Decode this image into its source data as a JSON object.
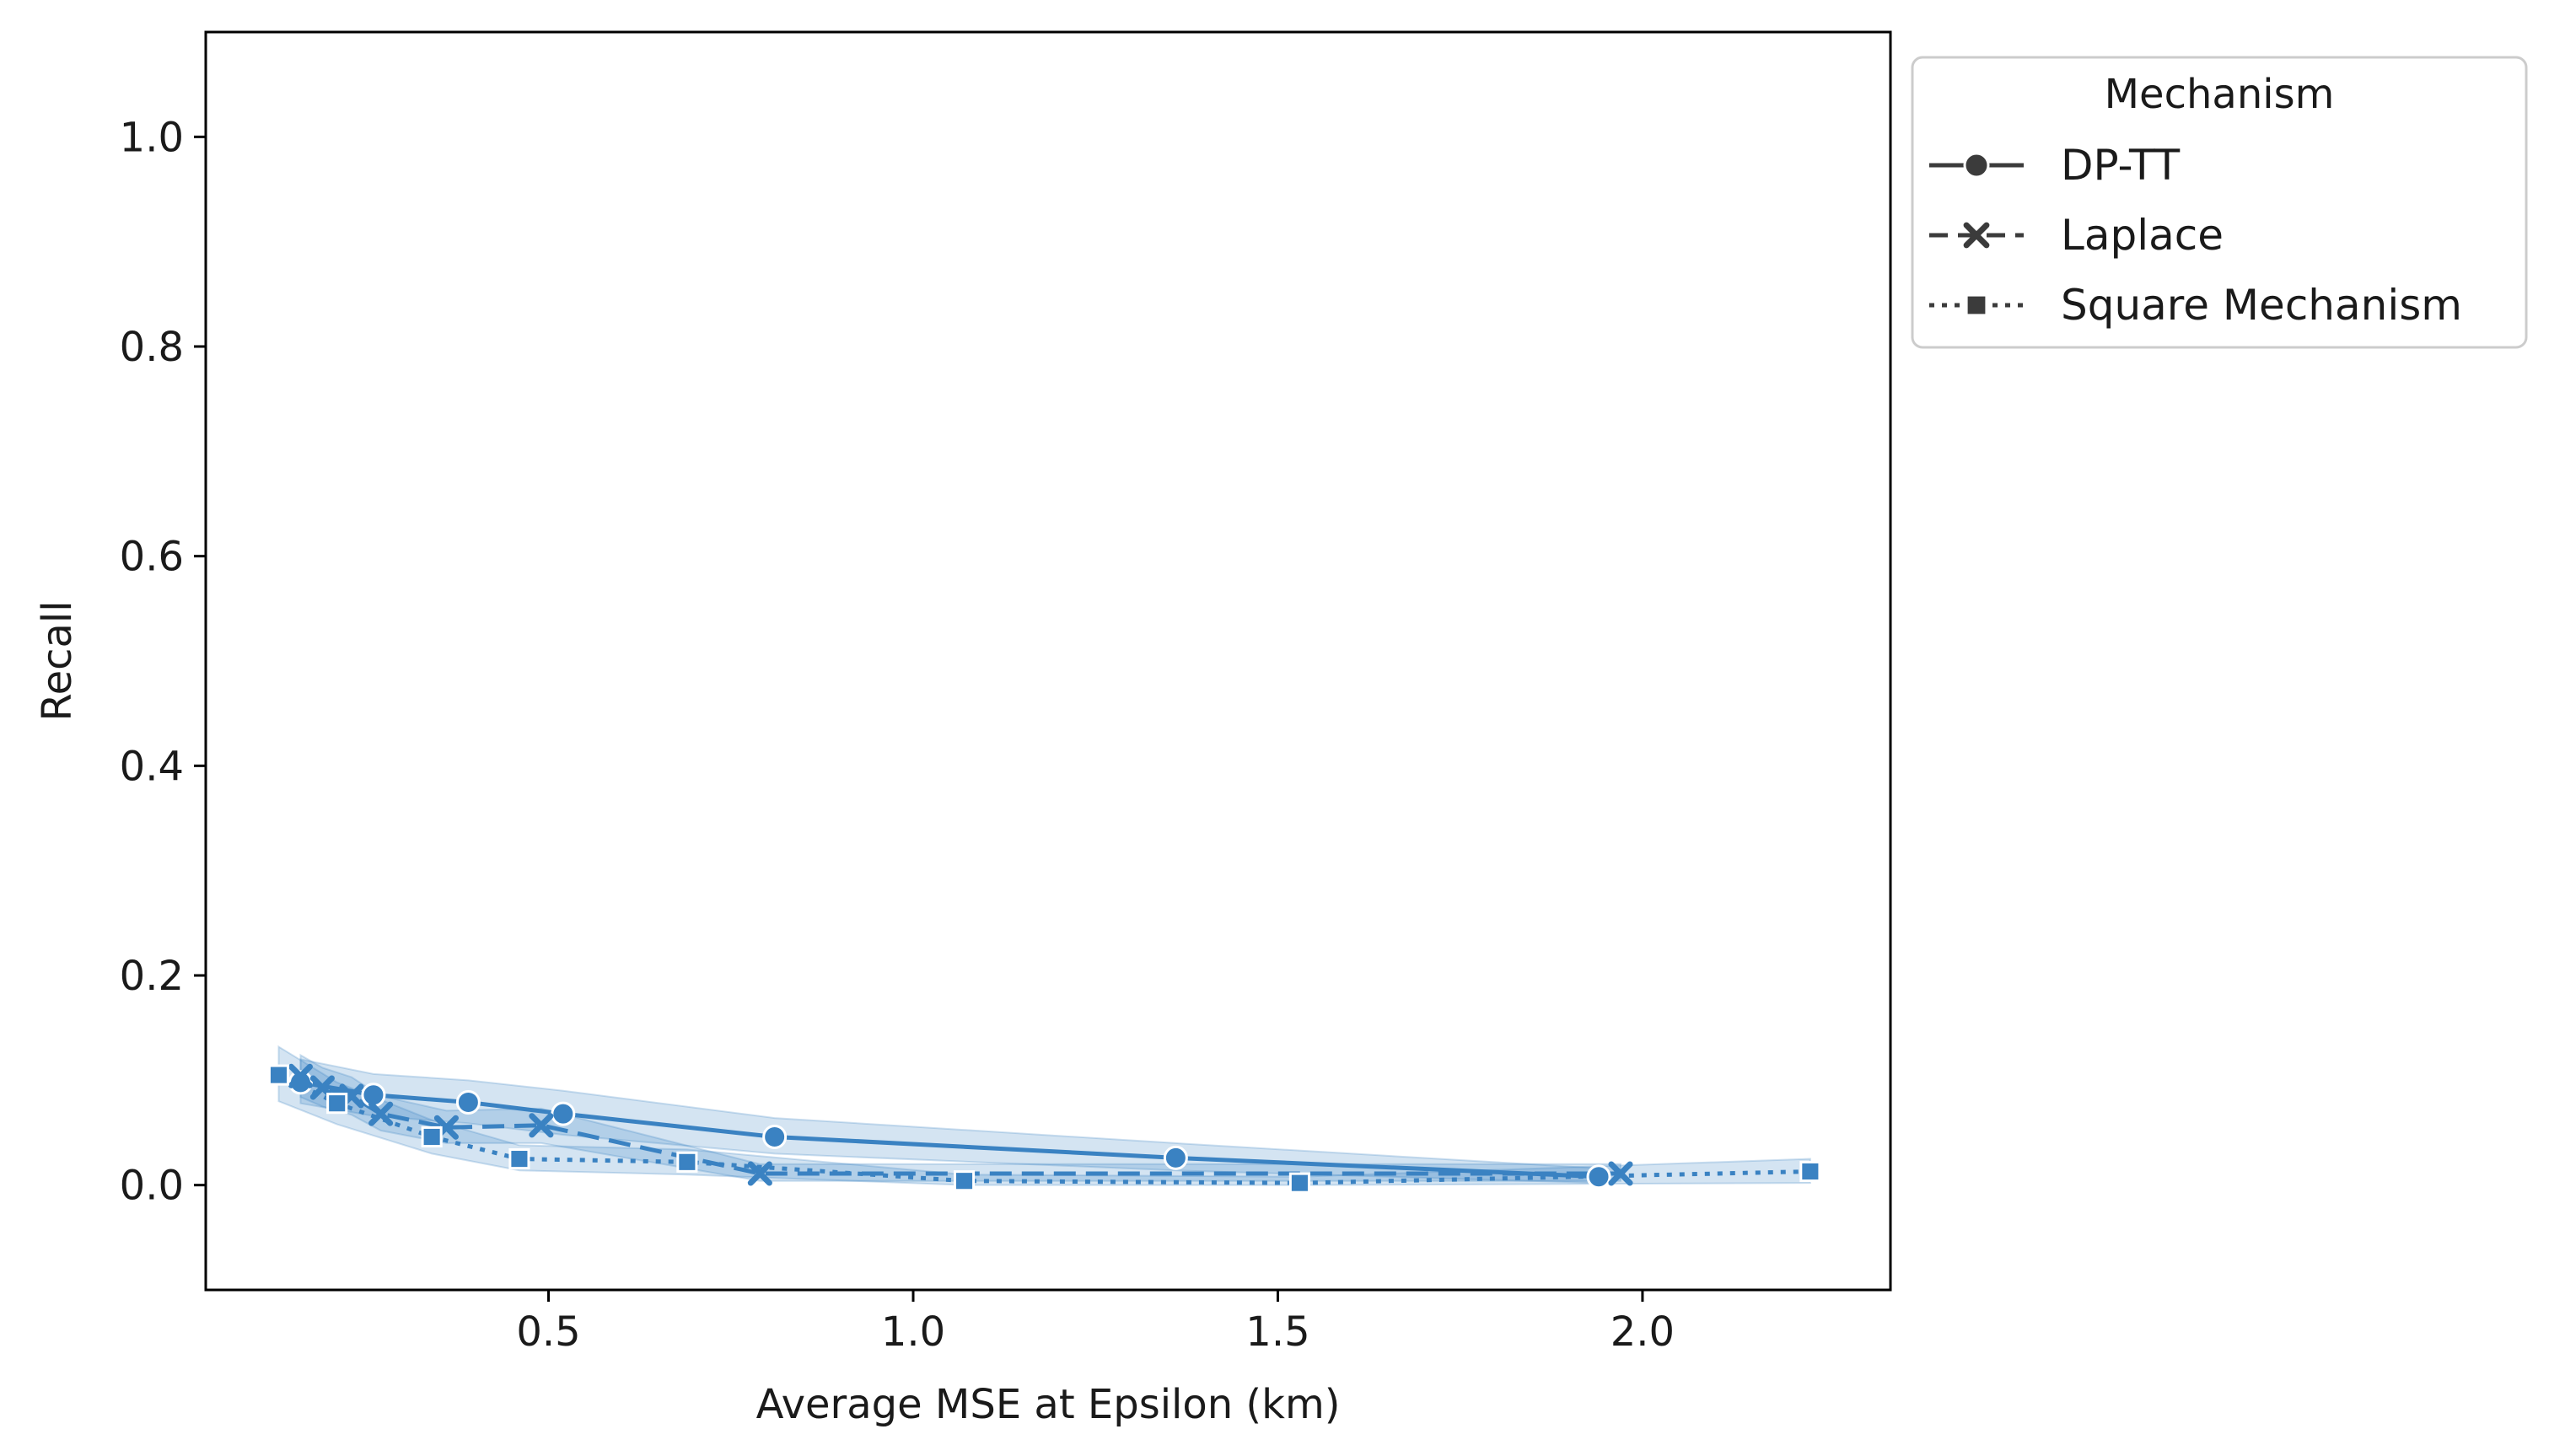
{
  "chart_data": {
    "type": "line",
    "title": "",
    "xlabel": "Average MSE at Epsilon (km)",
    "ylabel": "Recall",
    "xlim": [
      0.03,
      2.34
    ],
    "ylim": [
      -0.1,
      1.1
    ],
    "xticks": [
      0.5,
      1.0,
      1.5,
      2.0
    ],
    "xtick_labels": [
      "0.5",
      "1.0",
      "1.5",
      "2.0"
    ],
    "yticks": [
      0.0,
      0.2,
      0.4,
      0.6,
      0.8,
      1.0
    ],
    "ytick_labels": [
      "0.0",
      "0.2",
      "0.4",
      "0.6",
      "0.8",
      "1.0"
    ],
    "grid": false,
    "legend": {
      "title": "Mechanism",
      "placement": "outside-upper-right",
      "entries": [
        "DP-TT",
        "Laplace",
        "Square Mechanism"
      ]
    },
    "series": [
      {
        "name": "DP-TT",
        "line_style": "solid",
        "marker": "circle",
        "color": "#3a82c2",
        "x": [
          0.16,
          0.26,
          0.39,
          0.52,
          0.81,
          1.36,
          1.94
        ],
        "y": [
          0.098,
          0.086,
          0.079,
          0.068,
          0.046,
          0.026,
          0.008
        ],
        "ci_low": [
          0.078,
          0.066,
          0.059,
          0.048,
          0.03,
          0.014,
          0.002
        ],
        "ci_high": [
          0.12,
          0.106,
          0.1,
          0.09,
          0.064,
          0.04,
          0.016
        ]
      },
      {
        "name": "Laplace",
        "line_style": "dashed",
        "marker": "x",
        "color": "#3a82c2",
        "x": [
          0.16,
          0.19,
          0.23,
          0.27,
          0.36,
          0.49,
          0.79,
          1.97
        ],
        "y": [
          0.104,
          0.093,
          0.085,
          0.068,
          0.055,
          0.057,
          0.011,
          0.011
        ],
        "ci_low": [
          0.084,
          0.075,
          0.067,
          0.052,
          0.04,
          0.04,
          0.004,
          0.004
        ],
        "ci_high": [
          0.124,
          0.112,
          0.103,
          0.085,
          0.071,
          0.073,
          0.02,
          0.02
        ]
      },
      {
        "name": "Square Mechanism",
        "line_style": "dotted",
        "marker": "square",
        "color": "#3a82c2",
        "x": [
          0.13,
          0.21,
          0.34,
          0.46,
          0.69,
          1.07,
          1.53,
          2.23
        ],
        "y": [
          0.105,
          0.078,
          0.046,
          0.025,
          0.022,
          0.004,
          0.002,
          0.013
        ],
        "ci_low": [
          0.08,
          0.058,
          0.03,
          0.014,
          0.01,
          0.0,
          0.0,
          0.002
        ],
        "ci_high": [
          0.132,
          0.098,
          0.062,
          0.038,
          0.034,
          0.01,
          0.008,
          0.025
        ]
      }
    ]
  }
}
